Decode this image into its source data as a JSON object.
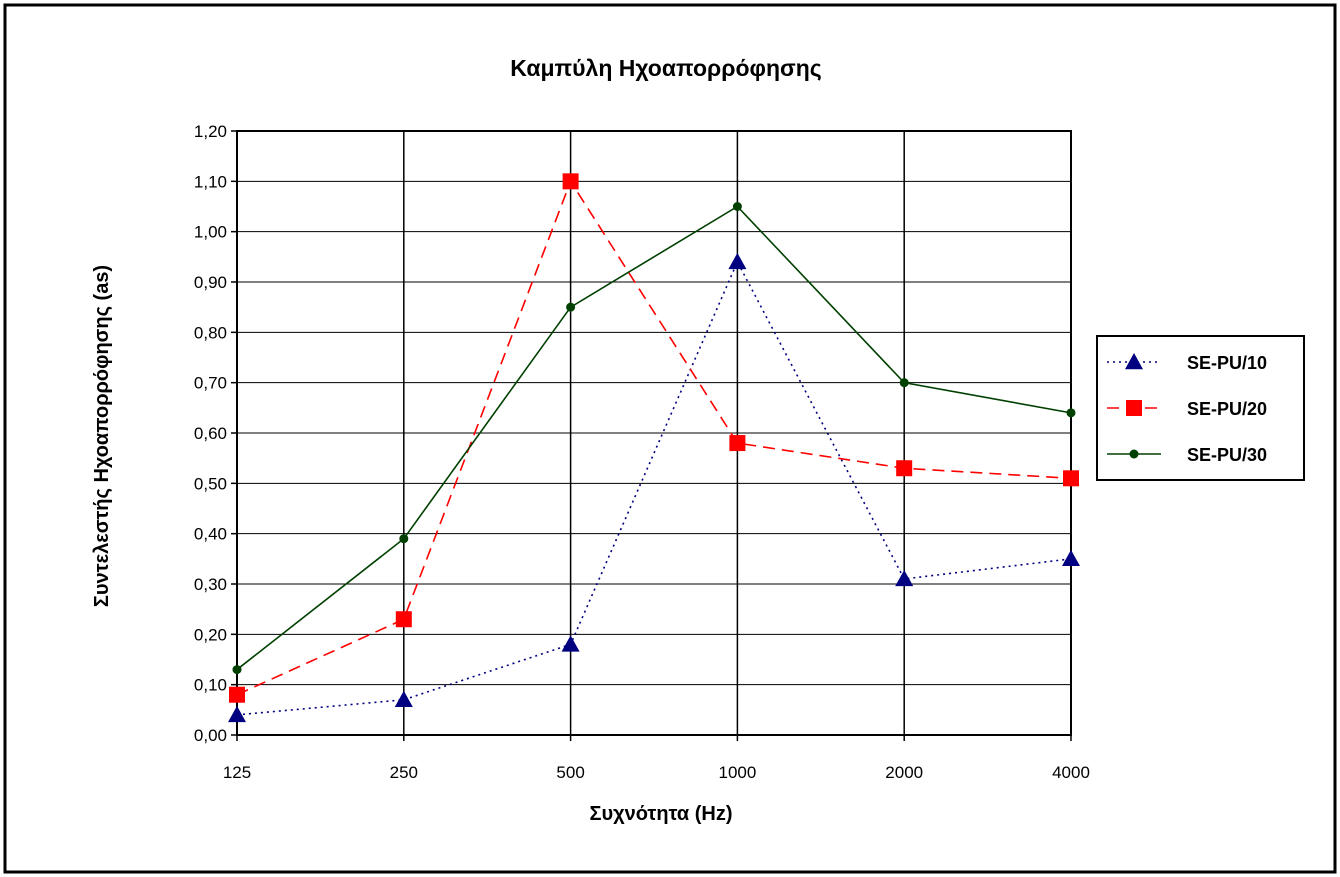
{
  "chart_data": {
    "type": "line",
    "title": "Καμπύλη Ηχοαπορρόφησης",
    "xlabel": "Συχνότητα (Hz)",
    "ylabel": "Συντελεστής Ηχοαπορρόφησης (as)",
    "categories": [
      "125",
      "250",
      "500",
      "1000",
      "2000",
      "4000"
    ],
    "ylim": [
      0,
      1.2
    ],
    "ytick_step": 0.1,
    "ytick_labels": [
      "0,00",
      "0,10",
      "0,20",
      "0,30",
      "0,40",
      "0,50",
      "0,60",
      "0,70",
      "0,80",
      "0,90",
      "1,00",
      "1,10",
      "1,20"
    ],
    "grid": true,
    "legend_position": "right",
    "series": [
      {
        "name": "SE-PU/10",
        "values": [
          0.04,
          0.07,
          0.18,
          0.94,
          0.31,
          0.35
        ],
        "color": "#000080",
        "line_style": "dotted",
        "marker": "triangle"
      },
      {
        "name": "SE-PU/20",
        "values": [
          0.08,
          0.23,
          1.1,
          0.58,
          0.53,
          0.51
        ],
        "color": "#ff0000",
        "line_style": "dashed",
        "marker": "square"
      },
      {
        "name": "SE-PU/30",
        "values": [
          0.13,
          0.39,
          0.85,
          1.05,
          0.7,
          0.64
        ],
        "color": "#004000",
        "line_style": "solid",
        "marker": "circle"
      }
    ]
  }
}
